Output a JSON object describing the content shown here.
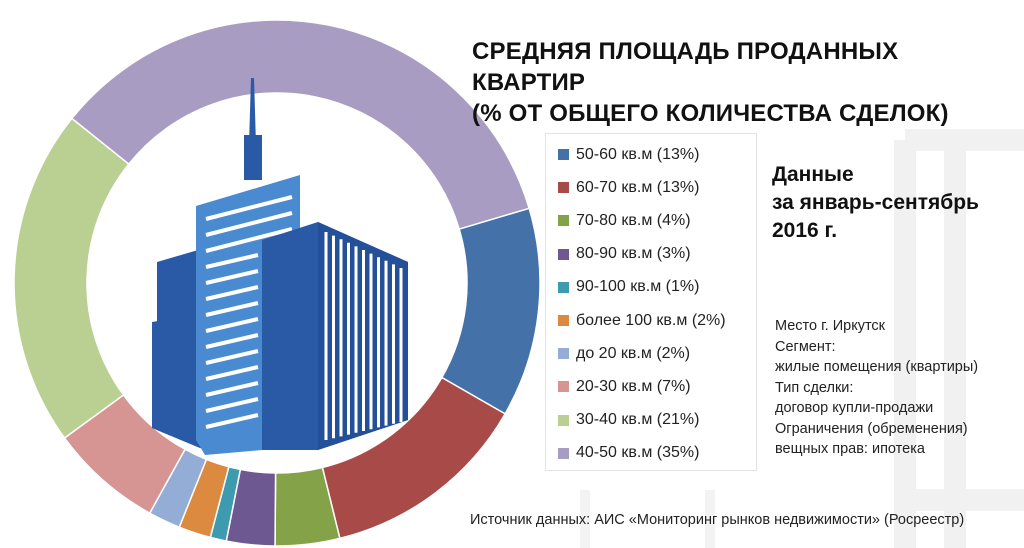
{
  "title_line1": "СРЕДНЯЯ ПЛОЩАДЬ ПРОДАННЫХ КВАРТИР",
  "title_line2": "(% ОТ ОБЩЕГО КОЛИЧЕСТВА СДЕЛОК)",
  "period": {
    "line1": "Данные",
    "line2": "за январь-сентябрь",
    "line3": "2016 г."
  },
  "meta": {
    "line1": "Место г. Иркутск",
    "line2": "Сегмент:",
    "line3": "жилые помещения (квартиры)",
    "line4": "Тип сделки:",
    "line5": "договор купли-продажи",
    "line6": "Ограничения (обременения)",
    "line7": "вещных прав: ипотека"
  },
  "source": "Источник данных: АИС «Мониторинг рынков недвижимости» (Росреестр)",
  "colors": {
    "building_dark": "#2a5aa6",
    "building_light": "#4a8ad0",
    "legend_border": "#e3e3e3"
  },
  "chart_data": {
    "type": "pie",
    "style": "donut",
    "legend_position": "right",
    "categories": [
      "50-60 кв.м",
      "60-70 кв.м",
      "70-80 кв.м",
      "80-90 кв.м",
      "90-100 кв.м",
      "более 100 кв.м",
      "до 20 кв.м",
      "20-30 кв.м",
      "30-40 кв.м",
      "40-50 кв.м"
    ],
    "values": [
      13,
      13,
      4,
      3,
      1,
      2,
      2,
      7,
      21,
      35
    ],
    "unit": "%",
    "legend_labels": [
      "50-60 кв.м (13%)",
      "60-70 кв.м (13%)",
      "70-80 кв.м (4%)",
      "80-90 кв.м (3%)",
      "90-100 кв.м (1%)",
      "более 100 кв.м (2%)",
      "до 20 кв.м (2%)",
      "20-30 кв.м (7%)",
      "30-40 кв.м (21%)",
      "40-50 кв.м (35%)"
    ],
    "colors": [
      "#4472a8",
      "#a84a48",
      "#84a348",
      "#6e5891",
      "#3e9aae",
      "#dc8a40",
      "#94add6",
      "#d69592",
      "#bad093",
      "#a99cc2"
    ]
  }
}
